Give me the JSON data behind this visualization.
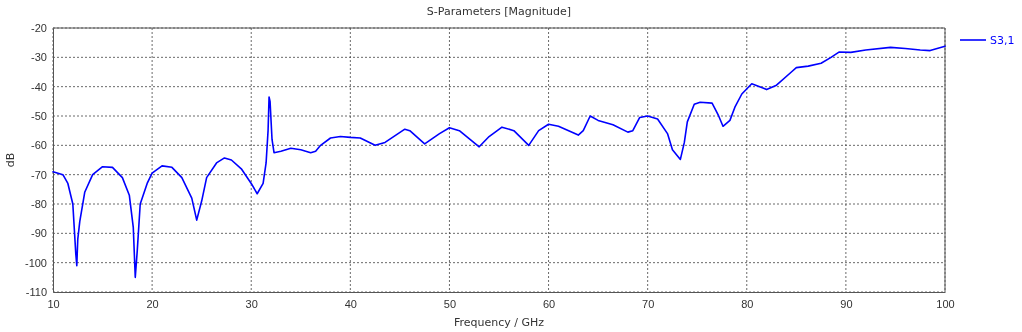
{
  "chart_data": {
    "type": "line",
    "title": "S-Parameters [Magnitude]",
    "xlabel": "Frequency / GHz",
    "ylabel": "dB",
    "xlim": [
      10,
      100
    ],
    "xticks": [
      10,
      20,
      30,
      40,
      50,
      60,
      70,
      80,
      90,
      100
    ],
    "ylim": [
      -110,
      -20
    ],
    "yticks": [
      -110,
      -100,
      -90,
      -80,
      -70,
      -60,
      -50,
      -40,
      -30,
      -20
    ],
    "grid": true,
    "legend": "top right",
    "marker": "none",
    "line_style": "solid",
    "series": [
      {
        "name": "S3,1",
        "color": "#0000ff",
        "x": [
          10,
          11,
          11.5,
          12,
          12.3,
          12.4,
          12.5,
          12.7,
          13.2,
          14,
          15,
          16,
          17,
          17.7,
          18.1,
          18.3,
          18.5,
          18.8,
          19.5,
          20,
          21,
          22,
          23,
          24,
          24.5,
          25,
          25.5,
          26.5,
          27.3,
          28,
          29,
          30,
          30.6,
          31.2,
          31.5,
          31.7,
          31.8,
          31.9,
          32.1,
          32.3,
          33,
          34,
          35,
          36,
          36.5,
          37,
          38,
          39,
          40,
          41,
          42.5,
          43.5,
          45.5,
          46,
          47.5,
          49,
          50,
          51,
          53,
          54,
          55.3,
          56.5,
          58,
          59,
          60,
          61,
          63,
          63.5,
          64.2,
          65,
          66.5,
          68,
          68.5,
          69.2,
          70,
          71,
          72,
          72.5,
          73.3,
          73.7,
          74,
          74.7,
          75.3,
          76.5,
          77.1,
          77.6,
          78.3,
          78.8,
          79.5,
          80.5,
          81.3,
          82,
          83,
          84.5,
          85,
          86.2,
          87.5,
          88.5,
          89.3,
          90.5,
          92,
          94.5,
          96,
          97.5,
          98.5,
          100
        ],
        "values": [
          -69,
          -70,
          -73,
          -80,
          -97,
          -101,
          -92,
          -86,
          -76,
          -70,
          -67.3,
          -67.5,
          -71,
          -77,
          -88,
          -105,
          -96,
          -80,
          -73,
          -69.5,
          -67,
          -67.5,
          -71,
          -78,
          -85.5,
          -79,
          -71,
          -66,
          -64.3,
          -65,
          -68,
          -73,
          -76.5,
          -73,
          -66,
          -55,
          -43.5,
          -45,
          -58,
          -62.5,
          -62,
          -61,
          -61.5,
          -62.5,
          -62,
          -60,
          -57.5,
          -57,
          -57.3,
          -57.5,
          -60,
          -59,
          -54.5,
          -55,
          -59.5,
          -56,
          -54,
          -55,
          -60.5,
          -57,
          -53.8,
          -55,
          -60,
          -55,
          -52.8,
          -53.5,
          -56.5,
          -55,
          -50,
          -51.5,
          -53,
          -55.5,
          -55,
          -50.5,
          -50,
          -51,
          -56,
          -61.5,
          -64.8,
          -59,
          -52,
          -46,
          -45.3,
          -45.6,
          -49.5,
          -53.5,
          -51.5,
          -47,
          -42.5,
          -39,
          -40,
          -41,
          -39.5,
          -35,
          -33.5,
          -33,
          -32,
          -30,
          -28.2,
          -28.3,
          -27.5,
          -26.6,
          -27,
          -27.5,
          -27.7,
          -26.2
        ]
      }
    ]
  }
}
